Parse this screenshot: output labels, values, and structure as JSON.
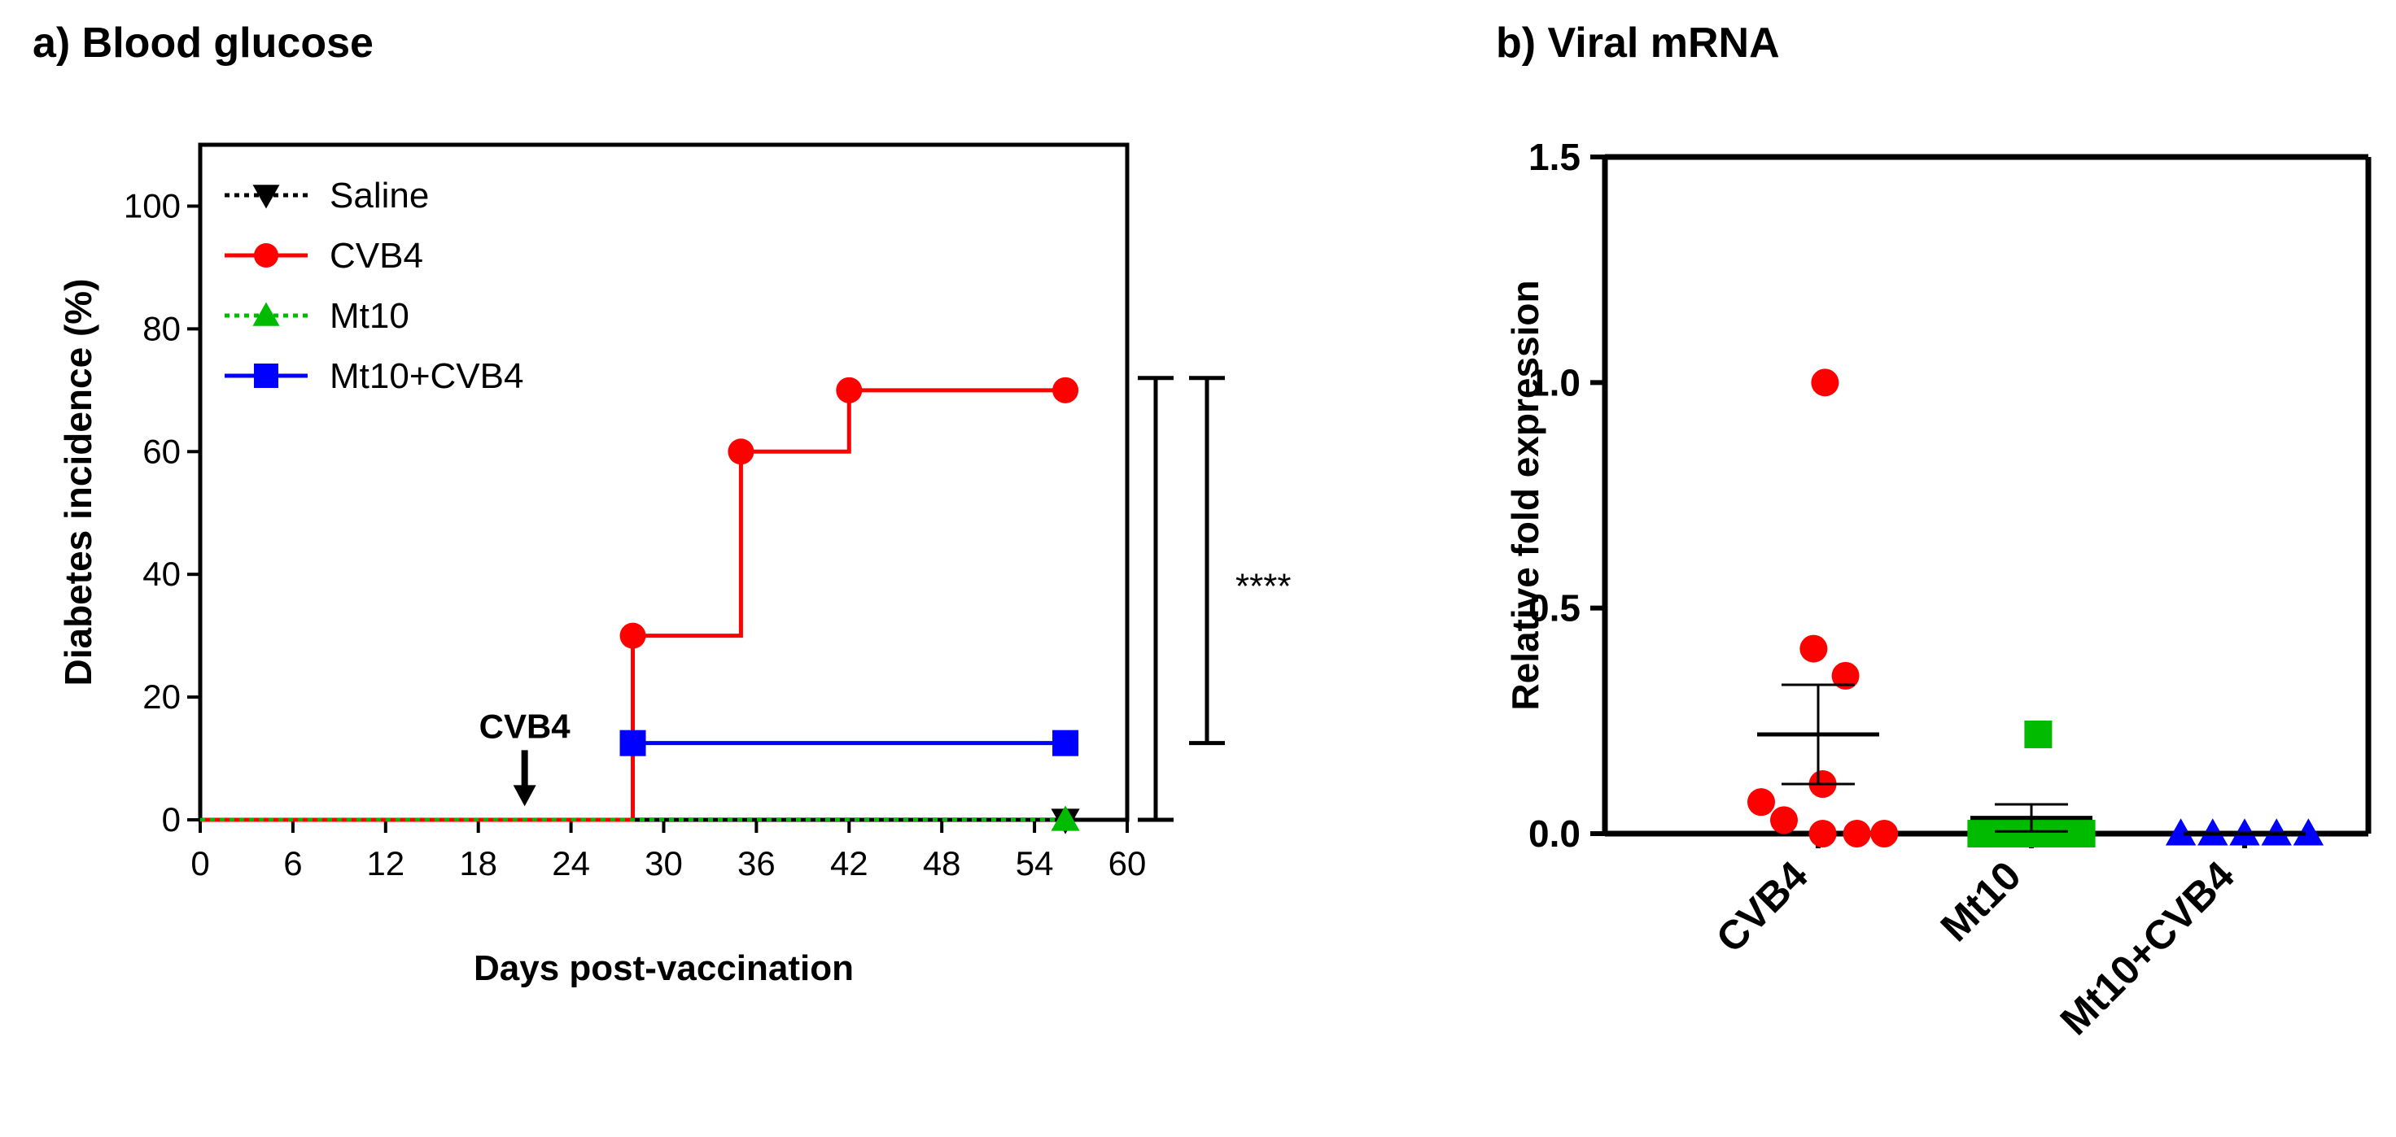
{
  "chart_data": [
    {
      "type": "line",
      "title": "a) Blood glucose",
      "xlabel": "Days post-vaccination",
      "ylabel": "Diabetes incidence (%)",
      "xlim": [
        0,
        60
      ],
      "ylim": [
        0,
        110
      ],
      "xticks": [
        0,
        6,
        12,
        18,
        24,
        30,
        36,
        42,
        48,
        54,
        60
      ],
      "yticks": [
        0,
        20,
        40,
        60,
        80,
        100
      ],
      "legend_position": "top-left",
      "series": [
        {
          "name": "Saline",
          "color": "#000000",
          "marker": "triangle-down",
          "style": "dotted",
          "x": [
            0,
            56
          ],
          "y": [
            0,
            0
          ],
          "marker_x": [
            56
          ],
          "marker_y": [
            0
          ]
        },
        {
          "name": "CVB4",
          "color": "#ff0000",
          "marker": "circle",
          "style": "step",
          "x": [
            0,
            28,
            28,
            35,
            35,
            42,
            42,
            56
          ],
          "y": [
            0,
            0,
            30,
            30,
            60,
            60,
            70,
            70
          ],
          "marker_x": [
            28,
            35,
            42,
            56
          ],
          "marker_y": [
            30,
            60,
            70,
            70
          ]
        },
        {
          "name": "Mt10",
          "color": "#00bb00",
          "marker": "triangle-up",
          "style": "dotted",
          "x": [
            0,
            56
          ],
          "y": [
            0,
            0
          ],
          "marker_x": [
            56
          ],
          "marker_y": [
            0
          ]
        },
        {
          "name": "Mt10+CVB4",
          "color": "#0000ff",
          "marker": "square",
          "style": "step",
          "x": [
            28,
            56
          ],
          "y": [
            12.5,
            12.5
          ],
          "marker_x": [
            28,
            56
          ],
          "marker_y": [
            12.5,
            12.5
          ]
        }
      ],
      "annotations": [
        {
          "text": "CVB4",
          "x": 21,
          "arrow_to_y": 3,
          "label_y": 14
        }
      ],
      "significance": {
        "text": "****",
        "brackets": [
          {
            "y_top": 72,
            "y_bottom": 0
          },
          {
            "y_top": 72,
            "y_bottom": 12.5
          }
        ]
      }
    },
    {
      "type": "scatter",
      "title": "b) Viral mRNA",
      "xlabel": "",
      "ylabel": "Relative fold expression",
      "ylim": [
        0,
        1.5
      ],
      "yticks": [
        0.0,
        0.5,
        1.0,
        1.5
      ],
      "ytick_labels": [
        "0.0",
        "0.5",
        "1.0",
        "1.5"
      ],
      "categories": [
        "CVB4",
        "Mt10",
        "Mt10+CVB4"
      ],
      "series": [
        {
          "name": "CVB4",
          "color": "#ff0000",
          "marker": "circle",
          "points": [
            [
              -0.25,
              0.07
            ],
            [
              -0.15,
              0.03
            ],
            [
              -0.02,
              0.41
            ],
            [
              0.03,
              1.0
            ],
            [
              0.02,
              0.11
            ],
            [
              0.12,
              0.35
            ],
            [
              0.02,
              0.0
            ],
            [
              0.17,
              0.0
            ],
            [
              0.29,
              0.0
            ]
          ],
          "mean": 0.22,
          "sem_low": 0.11,
          "sem_high": 0.33
        },
        {
          "name": "Mt10",
          "color": "#00bb00",
          "marker": "square",
          "points": [
            [
              -0.22,
              0.0
            ],
            [
              -0.11,
              0.0
            ],
            [
              0.0,
              0.0
            ],
            [
              0.11,
              0.0
            ],
            [
              0.22,
              0.0
            ],
            [
              0.03,
              0.22
            ]
          ],
          "mean": 0.035,
          "sem_low": 0.005,
          "sem_high": 0.065
        },
        {
          "name": "Mt10+CVB4",
          "color": "#0000ff",
          "marker": "triangle-up",
          "points": [
            [
              -0.28,
              0.0
            ],
            [
              -0.14,
              0.0
            ],
            [
              0.0,
              0.0
            ],
            [
              0.14,
              0.0
            ],
            [
              0.28,
              0.0
            ]
          ],
          "mean": 0.0,
          "sem_low": 0.0,
          "sem_high": 0.0
        }
      ]
    }
  ]
}
